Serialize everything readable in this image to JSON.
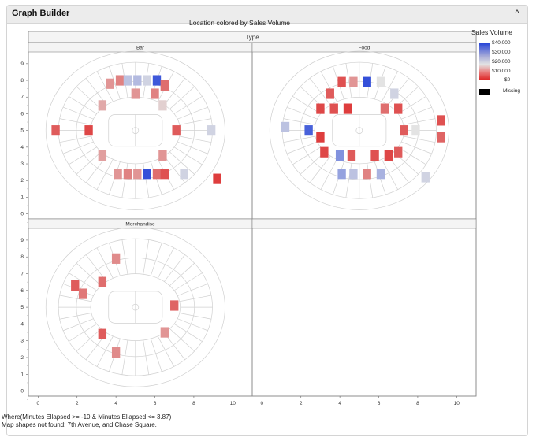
{
  "window": {
    "title": "Graph Builder",
    "collapse_glyph": "^"
  },
  "report_title": "Location colored by Sales Volume",
  "facet_header": "Type",
  "legend": {
    "title": "Sales Volume",
    "ticks": [
      "$40,000",
      "$30,000",
      "$20,000",
      "$10,000",
      "$0"
    ],
    "missing_label": "Missing",
    "missing_color": "#000000"
  },
  "colors": {
    "high": "#2140d8",
    "mid": "#e3e3e3",
    "low": "#dd2020",
    "outline": "#d0d0d0"
  },
  "footnotes": [
    "Where(Minutes Ellapsed >= -10 & Minutes Ellapsed <= 3.87)",
    "Map shapes not found: 7th Avenue, and Chase Square."
  ],
  "chart_data": {
    "type": "heatmap",
    "title": "Location colored by Sales Volume",
    "facet_by": "Type",
    "x_ticks": [
      "0",
      "2",
      "4",
      "6",
      "8",
      "10"
    ],
    "y_ticks": [
      "0",
      "1",
      "2",
      "3",
      "4",
      "5",
      "6",
      "7",
      "8",
      "9"
    ],
    "xlim": [
      -0.5,
      11
    ],
    "ylim": [
      -0.3,
      9.7
    ],
    "color_scale": {
      "min": 0,
      "max": 40000
    },
    "panels": [
      {
        "name": "Bar",
        "sections": [
          {
            "x": 4.2,
            "y": 8.0,
            "value": 10000
          },
          {
            "x": 4.6,
            "y": 8.0,
            "value": 24000
          },
          {
            "x": 5.1,
            "y": 8.0,
            "value": 25000
          },
          {
            "x": 5.6,
            "y": 8.0,
            "value": 22000
          },
          {
            "x": 6.1,
            "y": 8.0,
            "value": 37000
          },
          {
            "x": 6.5,
            "y": 7.7,
            "value": 8000
          },
          {
            "x": 3.7,
            "y": 7.8,
            "value": 12000
          },
          {
            "x": 5.0,
            "y": 7.2,
            "value": 12000
          },
          {
            "x": 6.0,
            "y": 7.2,
            "value": 10000
          },
          {
            "x": 3.3,
            "y": 6.5,
            "value": 14000
          },
          {
            "x": 6.4,
            "y": 6.5,
            "value": 18000
          },
          {
            "x": 2.6,
            "y": 5.0,
            "value": 4000
          },
          {
            "x": 7.1,
            "y": 5.0,
            "value": 6000
          },
          {
            "x": 8.9,
            "y": 5.0,
            "value": 22000
          },
          {
            "x": 0.9,
            "y": 5.0,
            "value": 6000
          },
          {
            "x": 3.3,
            "y": 3.5,
            "value": 13000
          },
          {
            "x": 6.4,
            "y": 3.5,
            "value": 12000
          },
          {
            "x": 4.1,
            "y": 2.4,
            "value": 12000
          },
          {
            "x": 4.6,
            "y": 2.4,
            "value": 10000
          },
          {
            "x": 5.1,
            "y": 2.4,
            "value": 12000
          },
          {
            "x": 5.6,
            "y": 2.4,
            "value": 38000
          },
          {
            "x": 6.1,
            "y": 2.4,
            "value": 8000
          },
          {
            "x": 6.5,
            "y": 2.4,
            "value": 5000
          },
          {
            "x": 7.5,
            "y": 2.4,
            "value": 22000
          },
          {
            "x": 9.2,
            "y": 2.1,
            "value": 3000
          }
        ]
      },
      {
        "name": "Food",
        "sections": [
          {
            "x": 4.1,
            "y": 7.9,
            "value": 5000
          },
          {
            "x": 4.7,
            "y": 7.9,
            "value": 12000
          },
          {
            "x": 5.4,
            "y": 7.9,
            "value": 38000
          },
          {
            "x": 6.1,
            "y": 7.9,
            "value": 20000
          },
          {
            "x": 3.5,
            "y": 7.2,
            "value": 6000
          },
          {
            "x": 6.8,
            "y": 7.2,
            "value": 22000
          },
          {
            "x": 3.0,
            "y": 6.3,
            "value": 4000
          },
          {
            "x": 3.7,
            "y": 6.3,
            "value": 5000
          },
          {
            "x": 4.4,
            "y": 6.3,
            "value": 3000
          },
          {
            "x": 6.3,
            "y": 6.3,
            "value": 8000
          },
          {
            "x": 7.0,
            "y": 6.3,
            "value": 5000
          },
          {
            "x": 2.4,
            "y": 5.0,
            "value": 36000
          },
          {
            "x": 3.0,
            "y": 4.6,
            "value": 3000
          },
          {
            "x": 7.3,
            "y": 5.0,
            "value": 6000
          },
          {
            "x": 7.9,
            "y": 5.0,
            "value": 20000
          },
          {
            "x": 1.2,
            "y": 5.2,
            "value": 24000
          },
          {
            "x": 9.2,
            "y": 5.6,
            "value": 5000
          },
          {
            "x": 9.2,
            "y": 4.6,
            "value": 7000
          },
          {
            "x": 3.2,
            "y": 3.7,
            "value": 4000
          },
          {
            "x": 4.0,
            "y": 3.5,
            "value": 30000
          },
          {
            "x": 4.6,
            "y": 3.5,
            "value": 6000
          },
          {
            "x": 5.8,
            "y": 3.5,
            "value": 5000
          },
          {
            "x": 6.5,
            "y": 3.5,
            "value": 4000
          },
          {
            "x": 7.0,
            "y": 3.7,
            "value": 6000
          },
          {
            "x": 4.1,
            "y": 2.4,
            "value": 28000
          },
          {
            "x": 4.7,
            "y": 2.4,
            "value": 24000
          },
          {
            "x": 5.4,
            "y": 2.4,
            "value": 10000
          },
          {
            "x": 6.1,
            "y": 2.4,
            "value": 26000
          },
          {
            "x": 8.4,
            "y": 2.2,
            "value": 22000
          }
        ]
      },
      {
        "name": "Merchandise",
        "sections": [
          {
            "x": 4.0,
            "y": 7.9,
            "value": 11000
          },
          {
            "x": 1.9,
            "y": 6.3,
            "value": 6000
          },
          {
            "x": 2.3,
            "y": 5.8,
            "value": 9000
          },
          {
            "x": 3.3,
            "y": 6.5,
            "value": 8000
          },
          {
            "x": 7.0,
            "y": 5.1,
            "value": 7000
          },
          {
            "x": 3.3,
            "y": 3.4,
            "value": 6000
          },
          {
            "x": 6.5,
            "y": 3.5,
            "value": 12000
          },
          {
            "x": 4.0,
            "y": 2.3,
            "value": 11000
          }
        ]
      },
      {
        "name": "",
        "sections": []
      }
    ]
  }
}
